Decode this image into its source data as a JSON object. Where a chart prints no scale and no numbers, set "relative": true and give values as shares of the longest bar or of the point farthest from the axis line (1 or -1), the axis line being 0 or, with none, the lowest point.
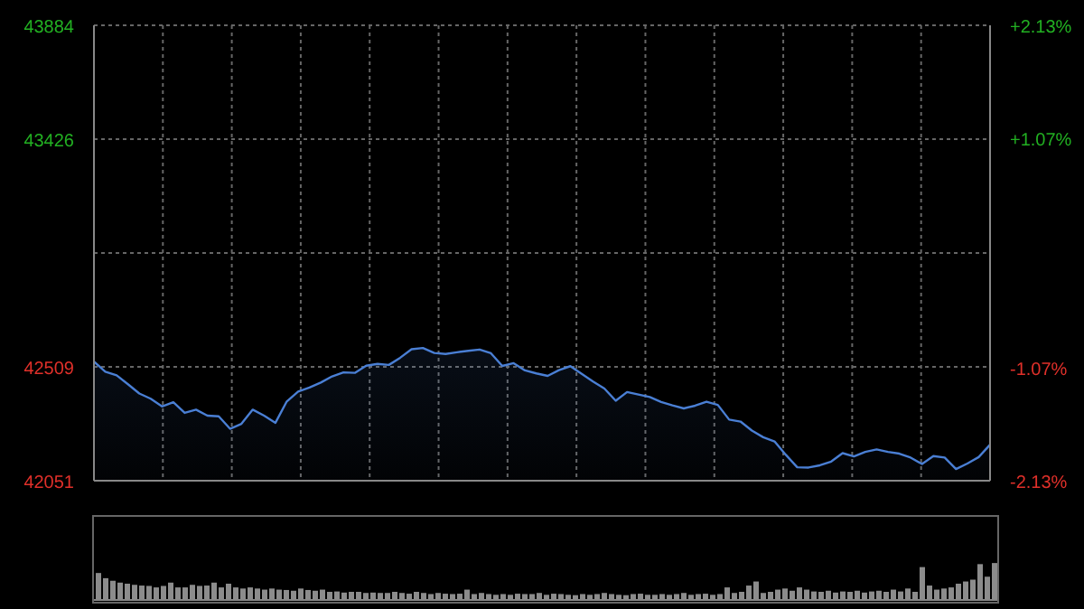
{
  "chart_data": [
    {
      "type": "area",
      "categories": [
        null,
        null,
        null,
        null,
        null,
        null,
        null,
        null,
        null,
        null,
        null,
        null,
        null,
        null,
        null,
        null,
        null,
        null,
        null,
        null,
        null,
        null,
        null,
        null,
        null,
        null,
        null,
        null,
        null,
        null,
        null,
        null,
        null,
        null,
        null,
        null,
        null,
        null,
        null,
        null,
        null,
        null,
        null,
        null,
        null,
        null,
        null,
        null,
        null,
        null,
        null,
        null,
        null,
        null,
        null,
        null,
        null,
        null,
        null,
        null,
        null,
        null,
        null,
        null,
        null,
        null,
        null,
        null,
        null,
        null,
        null,
        null,
        null,
        null,
        null,
        null,
        null,
        null,
        null,
        null
      ],
      "series": [
        {
          "color": "#4a7fd4",
          "values": [
            42531,
            42490,
            42475,
            42439,
            42402,
            42381,
            42350,
            42367,
            42324,
            42337,
            42313,
            42310,
            42260,
            42280,
            42337,
            42313,
            42284,
            42370,
            42410,
            42426,
            42446,
            42471,
            42487,
            42485,
            42514,
            42521,
            42517,
            42546,
            42580,
            42585,
            42565,
            42561,
            42568,
            42574,
            42579,
            42564,
            42513,
            42524,
            42495,
            42483,
            42473,
            42496,
            42512,
            42481,
            42450,
            42422,
            42373,
            42408,
            42398,
            42388,
            42368,
            42354,
            42342,
            42353,
            42369,
            42356,
            42297,
            42289,
            42253,
            42226,
            42209,
            42155,
            42105,
            42104,
            42113,
            42128,
            42162,
            42149,
            42167,
            42177,
            42167,
            42160,
            42144,
            42118,
            42150,
            42144,
            42098,
            42120,
            42146,
            42196
          ]
        }
      ],
      "ylim": [
        42051,
        43884
      ],
      "yticks": [
        42051,
        42509,
        {
          "value": 42967.5,
          "label": null
        },
        43426,
        43884
      ],
      "y2lim": [
        -2.13,
        2.13
      ],
      "y2ticks": [
        {
          "value": -2.13,
          "label": "-2.13%"
        },
        {
          "value": -1.07,
          "label": "-1.07%"
        },
        {
          "value": 1.07,
          "label": "+1.07%"
        },
        {
          "value": 2.13,
          "label": "+2.13%"
        }
      ],
      "grid": true,
      "tick_labels": "y"
    },
    {
      "type": "bar",
      "relative": true,
      "categories": [
        null,
        null,
        null,
        null,
        null,
        null,
        null,
        null,
        null,
        null,
        null,
        null,
        null,
        null,
        null,
        null,
        null,
        null,
        null,
        null,
        null,
        null,
        null,
        null,
        null,
        null,
        null,
        null,
        null,
        null,
        null,
        null,
        null,
        null,
        null,
        null,
        null,
        null,
        null,
        null,
        null,
        null,
        null,
        null,
        null,
        null,
        null,
        null,
        null,
        null,
        null,
        null,
        null,
        null,
        null,
        null,
        null,
        null,
        null,
        null,
        null,
        null,
        null,
        null,
        null,
        null,
        null,
        null,
        null,
        null,
        null,
        null,
        null,
        null,
        null,
        null,
        null,
        null,
        null,
        null,
        null,
        null,
        null,
        null,
        null,
        null,
        null,
        null,
        null,
        null,
        null,
        null,
        null,
        null,
        null,
        null,
        null,
        null,
        null,
        null,
        null,
        null,
        null,
        null,
        null,
        null,
        null,
        null,
        null,
        null,
        null,
        null,
        null,
        null,
        null,
        null,
        null,
        null,
        null,
        null,
        null,
        null,
        null,
        null,
        null
      ],
      "series": [
        {
          "color": "#8c8c8c",
          "values": [
            0.73,
            0.59,
            0.52,
            0.47,
            0.44,
            0.41,
            0.39,
            0.38,
            0.34,
            0.38,
            0.47,
            0.34,
            0.34,
            0.41,
            0.38,
            0.39,
            0.47,
            0.34,
            0.44,
            0.34,
            0.31,
            0.34,
            0.31,
            0.28,
            0.31,
            0.28,
            0.27,
            0.25,
            0.31,
            0.27,
            0.25,
            0.28,
            0.22,
            0.23,
            0.2,
            0.22,
            0.22,
            0.19,
            0.2,
            0.19,
            0.19,
            0.22,
            0.19,
            0.17,
            0.22,
            0.19,
            0.16,
            0.19,
            0.17,
            0.16,
            0.17,
            0.28,
            0.16,
            0.19,
            0.16,
            0.14,
            0.16,
            0.14,
            0.17,
            0.16,
            0.16,
            0.19,
            0.14,
            0.17,
            0.16,
            0.14,
            0.13,
            0.16,
            0.14,
            0.16,
            0.19,
            0.16,
            0.14,
            0.13,
            0.16,
            0.17,
            0.14,
            0.14,
            0.16,
            0.14,
            0.16,
            0.19,
            0.14,
            0.16,
            0.17,
            0.14,
            0.16,
            0.34,
            0.19,
            0.22,
            0.39,
            0.5,
            0.19,
            0.22,
            0.28,
            0.31,
            0.25,
            0.34,
            0.28,
            0.23,
            0.22,
            0.25,
            0.2,
            0.23,
            0.22,
            0.25,
            0.2,
            0.23,
            0.25,
            0.22,
            0.28,
            0.23,
            0.31,
            0.22,
            0.89,
            0.39,
            0.28,
            0.31,
            0.34,
            0.44,
            0.5,
            0.55,
            0.97,
            0.63,
            1
          ]
        }
      ]
    }
  ]
}
